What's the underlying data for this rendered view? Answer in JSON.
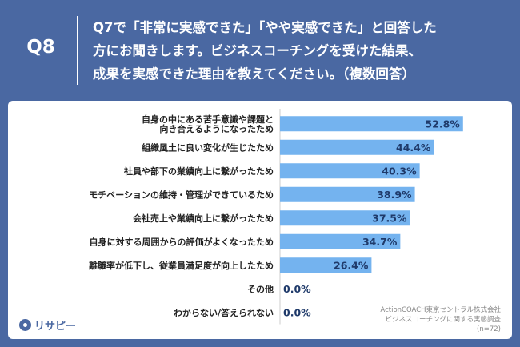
{
  "header": {
    "question_number": "Q8",
    "question_lines": [
      "Q7で「非常に実感できた」「やや実感できた」と回答した",
      "方にお聞きします。ビジネスコーチングを受けた結果、",
      "成果を実感できた理由を教えてください。（複数回答）"
    ]
  },
  "source": {
    "line1": "ActionCOACH東京セントラル株式会社",
    "line2": "ビジネスコーチングに関する実態調査",
    "line3": "(n=72)"
  },
  "logo": {
    "text": "リサピー"
  },
  "colors": {
    "bar": "#74b3ef",
    "background": "#4a68a2",
    "axis": "#cccccc"
  },
  "chart_data": {
    "type": "bar",
    "orientation": "horizontal",
    "categories": [
      [
        "自身の中にある苦手意識や課題と",
        "向き合えるようになったため"
      ],
      [
        "組織風土に良い変化が生じたため"
      ],
      [
        "社員や部下の業績向上に繋がったため"
      ],
      [
        "モチベーションの維持・管理ができているため"
      ],
      [
        "会社売上や業績向上に繋がったため"
      ],
      [
        "自身に対する周囲からの評価がよくなったため"
      ],
      [
        "離職率が低下し、従業員満足度が向上したため"
      ],
      [
        "その他"
      ],
      [
        "わからない/答えられない"
      ]
    ],
    "values": [
      52.8,
      44.4,
      40.3,
      38.9,
      37.5,
      34.7,
      26.4,
      0.0,
      0.0
    ],
    "value_labels": [
      "52.8%",
      "44.4%",
      "40.3%",
      "38.9%",
      "37.5%",
      "34.7%",
      "26.4%",
      "0.0%",
      "0.0%"
    ],
    "xlim": [
      0,
      60
    ],
    "title": "",
    "xlabel": "",
    "ylabel": ""
  }
}
